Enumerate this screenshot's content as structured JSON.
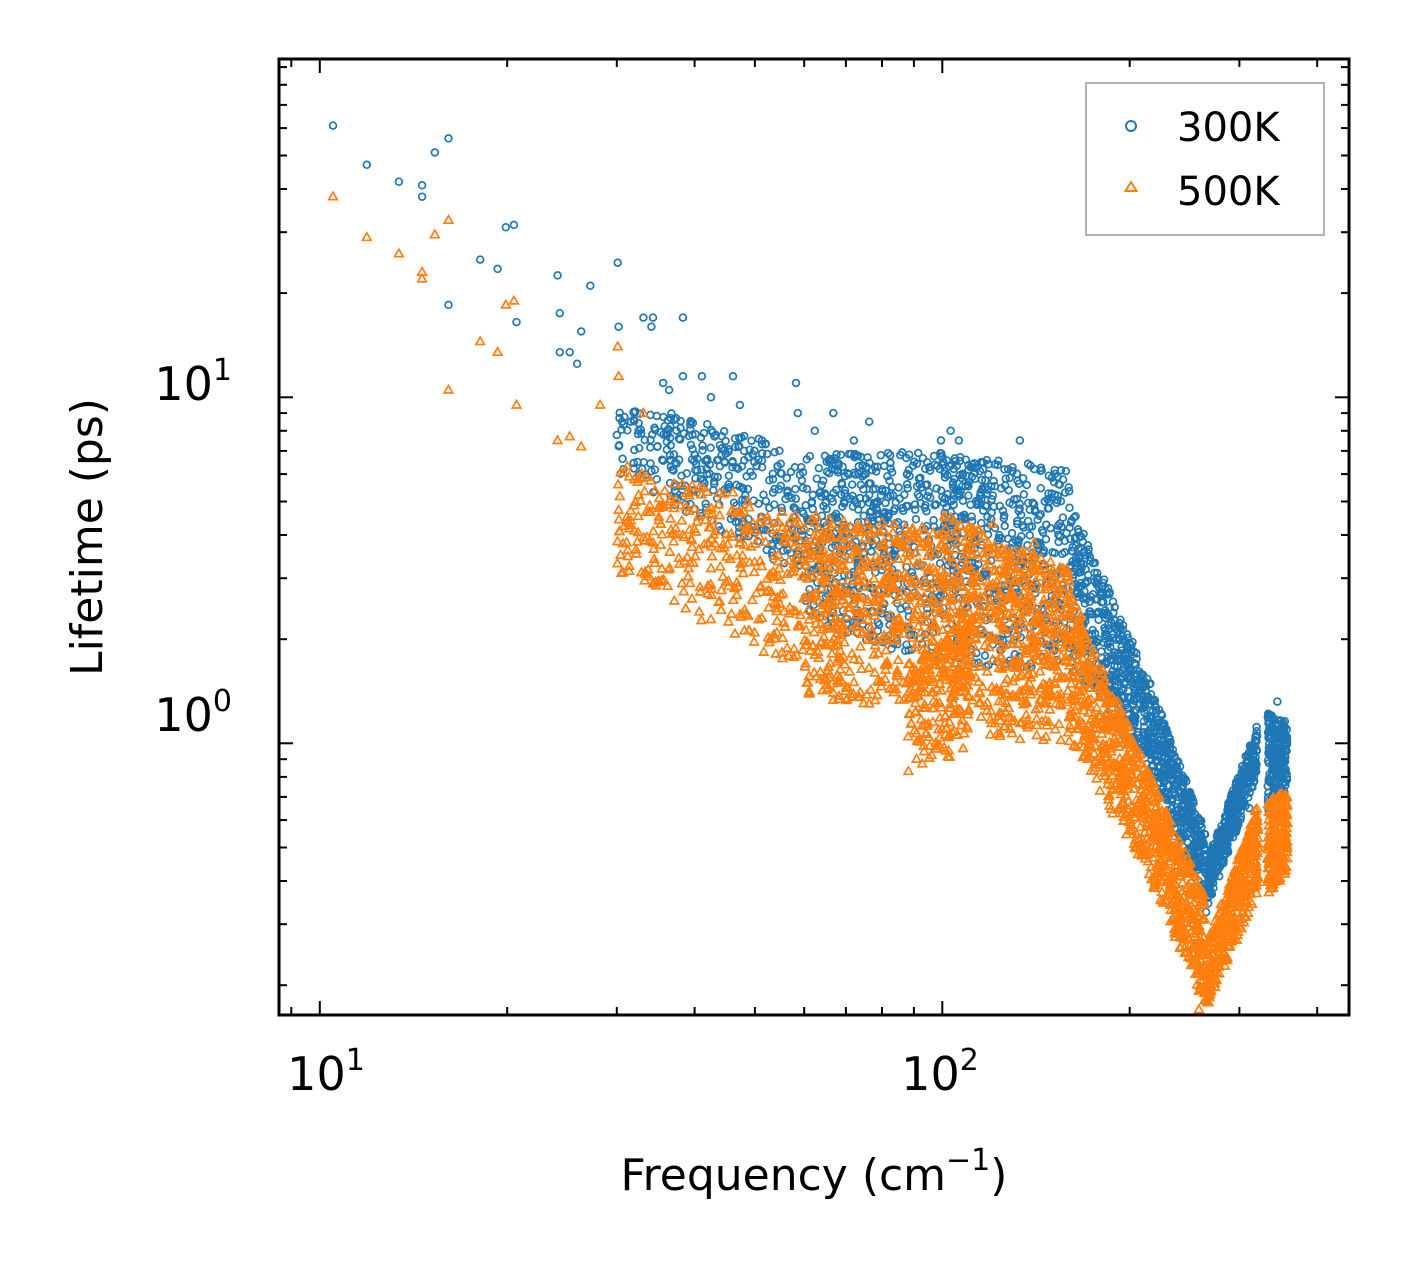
{
  "chart_data": {
    "type": "scatter",
    "title": "",
    "xlabel": "Frequency (cm",
    "xlabel_exp": "−1",
    "xlabel_close": ")",
    "ylabel": "Lifetime (ps)",
    "xscale": "log",
    "yscale": "log",
    "xlim": [
      8.6,
      450
    ],
    "ylim": [
      0.164,
      95
    ],
    "x_ticks": [
      {
        "base": "10",
        "exp": "1",
        "value": 10
      },
      {
        "base": "10",
        "exp": "2",
        "value": 100
      }
    ],
    "y_ticks": [
      {
        "base": "10",
        "exp": "0",
        "value": 1
      },
      {
        "base": "10",
        "exp": "1",
        "value": 10
      }
    ],
    "legend_position": "top-right",
    "series": [
      {
        "name": "300K",
        "marker": "circle",
        "color": "#1f77b4",
        "points": [
          [
            10.5,
            61
          ],
          [
            11.9,
            47
          ],
          [
            13.4,
            42
          ],
          [
            14.6,
            41
          ],
          [
            14.6,
            38
          ],
          [
            15.3,
            51
          ],
          [
            16.1,
            56
          ],
          [
            18.1,
            25
          ],
          [
            19.3,
            23.5
          ],
          [
            19.9,
            31
          ],
          [
            20.5,
            31.5
          ],
          [
            20.7,
            16.5
          ],
          [
            16.1,
            18.5
          ],
          [
            24.1,
            22.5
          ],
          [
            24.3,
            13.5
          ],
          [
            24.3,
            17.5
          ],
          [
            25.2,
            13.5
          ],
          [
            25.9,
            12.5
          ],
          [
            26.3,
            15.5
          ],
          [
            27.2,
            21
          ],
          [
            30.1,
            24.5
          ],
          [
            30.2,
            16
          ],
          [
            31.6,
            8.5
          ],
          [
            32.4,
            6.5
          ],
          [
            33.1,
            17
          ],
          [
            34.1,
            16
          ],
          [
            34.3,
            17
          ],
          [
            35.6,
            11
          ],
          [
            36.4,
            10.5
          ],
          [
            38.3,
            17
          ],
          [
            38.3,
            11.5
          ],
          [
            41.1,
            11.5
          ],
          [
            42.5,
            10
          ],
          [
            46.1,
            11.5
          ],
          [
            47.3,
            9.5
          ],
          [
            51.3,
            7.5
          ],
          [
            58.2,
            11
          ],
          [
            58.6,
            9
          ],
          [
            62.4,
            8
          ],
          [
            66.8,
            9
          ],
          [
            72.1,
            7.5
          ],
          [
            76.3,
            8.5
          ],
          [
            99.5,
            7.5
          ],
          [
            103.1,
            8
          ],
          [
            106.3,
            7.5
          ],
          [
            133.2,
            7.5
          ],
          [
            110.1,
            5.2
          ],
          [
            140.5,
            6.2
          ],
          [
            120.5,
            5.2
          ],
          [
            148.5,
            5
          ],
          [
            160.1,
            4.2
          ],
          [
            178.2,
            2.4
          ],
          [
            199.5,
            1.7
          ],
          [
            207.2,
            1.3
          ],
          [
            218.5,
            1.05
          ],
          [
            236.3,
            0.72
          ],
          [
            258.3,
            0.47
          ],
          [
            268.2,
            0.39
          ],
          [
            287.1,
            0.51
          ],
          [
            311.1,
            0.65
          ],
          [
            320.5,
            1.05
          ],
          [
            345.3,
            1.32
          ],
          [
            357.2,
            0.95
          ]
        ],
        "bands": [
          {
            "x0": 30,
            "x1": 60,
            "lo0": 6,
            "hi0": 10,
            "lo1": 3,
            "hi1": 7,
            "n": 330
          },
          {
            "x0": 60,
            "x1": 100,
            "lo0": 2.2,
            "hi0": 6.8,
            "lo1": 1.7,
            "hi1": 7,
            "n": 520
          },
          {
            "x0": 100,
            "x1": 160,
            "lo0": 1.7,
            "hi0": 7,
            "lo1": 1.6,
            "hi1": 6.2,
            "n": 520
          },
          {
            "x0": 160,
            "x1": 210,
            "lo0": 1.6,
            "hi0": 5,
            "lo1": 0.9,
            "hi1": 1.7,
            "n": 420
          },
          {
            "x0": 210,
            "x1": 265,
            "lo0": 0.9,
            "hi0": 1.7,
            "lo1": 0.34,
            "hi1": 0.55,
            "n": 420
          },
          {
            "x0": 265,
            "x1": 320,
            "lo0": 0.32,
            "hi0": 0.45,
            "lo1": 0.8,
            "hi1": 1.12,
            "n": 360
          },
          {
            "x0": 333,
            "x1": 358,
            "lo0": 0.62,
            "hi0": 1.25,
            "lo1": 0.7,
            "hi1": 1.15,
            "n": 220
          }
        ]
      },
      {
        "name": "500K",
        "marker": "triangle",
        "color": "#ff7f0e",
        "points": [
          [
            10.5,
            38
          ],
          [
            11.9,
            29
          ],
          [
            13.4,
            26
          ],
          [
            14.6,
            23
          ],
          [
            14.6,
            22
          ],
          [
            15.3,
            29.5
          ],
          [
            16.1,
            32.5
          ],
          [
            16.1,
            10.5
          ],
          [
            18.1,
            14.5
          ],
          [
            19.3,
            13.5
          ],
          [
            19.9,
            18.5
          ],
          [
            20.5,
            19
          ],
          [
            20.7,
            9.5
          ],
          [
            24.1,
            7.5
          ],
          [
            25.2,
            7.7
          ],
          [
            26.3,
            7.2
          ],
          [
            28.2,
            9.5
          ],
          [
            30.2,
            11.5
          ],
          [
            30.1,
            14
          ],
          [
            31.6,
            4.4
          ],
          [
            32.4,
            5.8
          ],
          [
            33.1,
            9
          ],
          [
            34.3,
            3.8
          ],
          [
            36.4,
            5
          ],
          [
            38.3,
            4
          ],
          [
            42.5,
            3.2
          ],
          [
            46.1,
            5.3
          ],
          [
            51.3,
            2.3
          ],
          [
            58.2,
            2.4
          ],
          [
            62.4,
            1.8
          ],
          [
            72.1,
            1.5
          ],
          [
            88.2,
            0.83
          ],
          [
            99.5,
            3
          ],
          [
            103.1,
            4.5
          ],
          [
            120.5,
            4.3
          ],
          [
            140.5,
            3.8
          ],
          [
            160.1,
            2.4
          ],
          [
            178.2,
            1.2
          ],
          [
            199.5,
            0.77
          ],
          [
            218.5,
            0.55
          ],
          [
            236.3,
            0.33
          ],
          [
            258.3,
            0.17
          ],
          [
            268.2,
            0.2
          ],
          [
            287.1,
            0.26
          ],
          [
            305.1,
            0.42
          ],
          [
            318.1,
            0.64
          ],
          [
            337.1,
            0.38
          ],
          [
            345.3,
            0.63
          ],
          [
            357.2,
            0.55
          ]
        ],
        "bands": [
          {
            "x0": 30,
            "x1": 60,
            "lo0": 3,
            "hi0": 6.5,
            "lo1": 1.6,
            "hi1": 4.5,
            "n": 330
          },
          {
            "x0": 60,
            "x1": 100,
            "lo0": 1.3,
            "hi0": 4.6,
            "lo1": 1.3,
            "hi1": 4.2,
            "n": 520
          },
          {
            "x0": 88,
            "x1": 110,
            "lo0": 0.82,
            "hi0": 1.6,
            "lo1": 0.95,
            "hi1": 2.4,
            "n": 160
          },
          {
            "x0": 100,
            "x1": 160,
            "lo0": 1.05,
            "hi0": 4.6,
            "lo1": 1.0,
            "hi1": 3.2,
            "n": 620
          },
          {
            "x0": 160,
            "x1": 210,
            "lo0": 1.0,
            "hi0": 2.8,
            "lo1": 0.45,
            "hi1": 0.9,
            "n": 420
          },
          {
            "x0": 210,
            "x1": 265,
            "lo0": 0.45,
            "hi0": 0.9,
            "lo1": 0.17,
            "hi1": 0.36,
            "n": 420
          },
          {
            "x0": 265,
            "x1": 322,
            "lo0": 0.17,
            "hi0": 0.26,
            "lo1": 0.36,
            "hi1": 0.68,
            "n": 360
          },
          {
            "x0": 333,
            "x1": 358,
            "lo0": 0.36,
            "hi0": 0.68,
            "lo1": 0.42,
            "hi1": 0.74,
            "n": 220
          }
        ]
      }
    ]
  }
}
